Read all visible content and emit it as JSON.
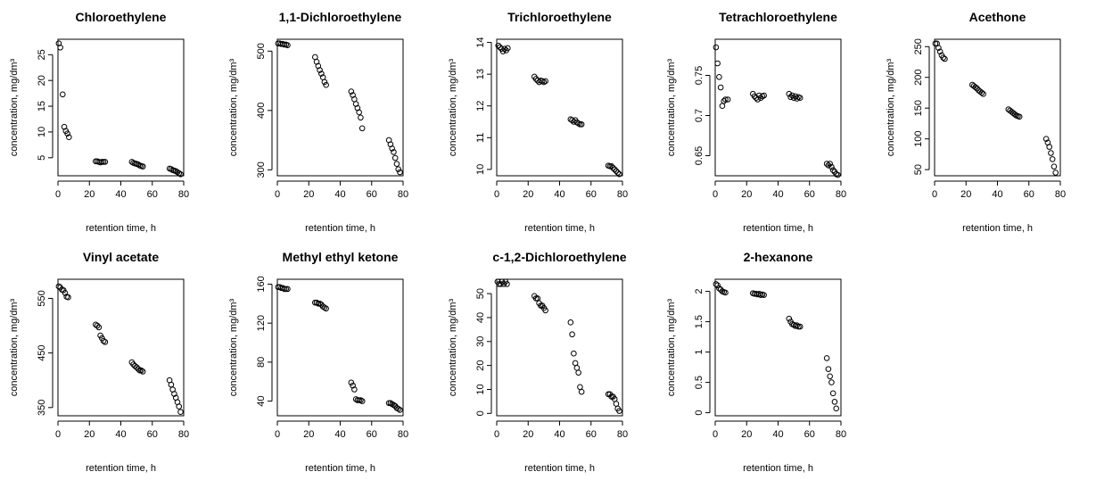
{
  "figure": {
    "xlabel": "retention time, h",
    "ylabel": "concentration, mg/dm³"
  },
  "chart_data": [
    {
      "type": "scatter",
      "title": "Chloroethylene",
      "xlabel": "retention time, h",
      "ylabel": "concentration, mg/dm³",
      "xlim": [
        0,
        80
      ],
      "ylim": [
        1.5,
        28
      ],
      "xticks": [
        0,
        20,
        40,
        60,
        80
      ],
      "yticks": [
        5,
        10,
        15,
        20,
        25
      ],
      "x": [
        0.5,
        1.5,
        3,
        4,
        5,
        6,
        7,
        24,
        25,
        26,
        27,
        28,
        29,
        30,
        47,
        48,
        49,
        50,
        51,
        52,
        53,
        54,
        71,
        72,
        73,
        74,
        75,
        76,
        77,
        78
      ],
      "y": [
        27.2,
        26.4,
        17.3,
        11.0,
        10.2,
        9.7,
        9.0,
        4.3,
        4.3,
        4.2,
        4.1,
        4.2,
        4.2,
        4.2,
        4.2,
        4.0,
        3.9,
        3.8,
        3.7,
        3.5,
        3.4,
        3.3,
        2.9,
        2.8,
        2.6,
        2.5,
        2.4,
        2.2,
        2.0,
        1.8
      ]
    },
    {
      "type": "scatter",
      "title": "1,1-Dichloroethylene",
      "xlabel": "retention time, h",
      "ylabel": "concentration, mg/dm³",
      "xlim": [
        0,
        80
      ],
      "ylim": [
        290,
        520
      ],
      "xticks": [
        0,
        20,
        40,
        60,
        80
      ],
      "yticks": [
        300,
        400,
        500
      ],
      "x": [
        0.5,
        1.5,
        2.5,
        3.5,
        4.5,
        5.5,
        6.5,
        24,
        25,
        26,
        27,
        28,
        29,
        30,
        31,
        47,
        48,
        49,
        50,
        51,
        52,
        53,
        54,
        71,
        72,
        73,
        74,
        75,
        76,
        77,
        78
      ],
      "y": [
        513,
        513,
        512,
        512,
        511,
        511,
        510,
        490,
        482,
        475,
        468,
        462,
        456,
        448,
        443,
        432,
        426,
        419,
        411,
        404,
        397,
        388,
        370,
        350,
        343,
        336,
        330,
        320,
        310,
        301,
        296
      ]
    },
    {
      "type": "scatter",
      "title": "Trichloroethylene",
      "xlabel": "retention time, h",
      "ylabel": "concentration, mg/dm³",
      "xlim": [
        0,
        80
      ],
      "ylim": [
        9.8,
        14.1
      ],
      "xticks": [
        0,
        20,
        40,
        60,
        80
      ],
      "yticks": [
        10,
        11,
        12,
        13,
        14
      ],
      "x": [
        1,
        2,
        3,
        4,
        5,
        6,
        7,
        24,
        25,
        26,
        27,
        28,
        29,
        30,
        31,
        47,
        48,
        49,
        50,
        51,
        52,
        53,
        54,
        71,
        72,
        73,
        74,
        75,
        76,
        77,
        78
      ],
      "y": [
        13.9,
        13.85,
        13.8,
        13.72,
        13.8,
        13.75,
        13.82,
        12.92,
        12.85,
        12.8,
        12.75,
        12.8,
        12.78,
        12.75,
        12.78,
        11.58,
        11.55,
        11.5,
        11.55,
        11.48,
        11.45,
        11.42,
        11.42,
        10.12,
        10.1,
        10.1,
        10.05,
        10.0,
        9.95,
        9.9,
        9.85
      ]
    },
    {
      "type": "scatter",
      "title": "Tetrachloroethylene",
      "xlabel": "retention time, h",
      "ylabel": "concentration, mg/dm³",
      "xlim": [
        0,
        80
      ],
      "ylim": [
        0.625,
        0.795
      ],
      "xticks": [
        0,
        20,
        40,
        60,
        80
      ],
      "yticks": [
        0.65,
        0.7,
        0.75
      ],
      "x": [
        0.5,
        1.5,
        2.5,
        3.5,
        4.5,
        5.5,
        6.5,
        8,
        24,
        25,
        26,
        27,
        28,
        29,
        30,
        31,
        47,
        48,
        49,
        50,
        51,
        52,
        53,
        54,
        71,
        72,
        73,
        74,
        75,
        76,
        77,
        78
      ],
      "y": [
        0.785,
        0.765,
        0.748,
        0.735,
        0.712,
        0.718,
        0.72,
        0.72,
        0.727,
        0.724,
        0.722,
        0.72,
        0.725,
        0.722,
        0.724,
        0.725,
        0.727,
        0.723,
        0.725,
        0.722,
        0.724,
        0.721,
        0.723,
        0.722,
        0.64,
        0.638,
        0.64,
        0.636,
        0.632,
        0.63,
        0.627,
        0.626
      ]
    },
    {
      "type": "scatter",
      "title": "Acethone",
      "xlabel": "retention time, h",
      "ylabel": "concentration, mg/dm³",
      "xlim": [
        0,
        80
      ],
      "ylim": [
        40,
        262
      ],
      "xticks": [
        0,
        20,
        40,
        60,
        80
      ],
      "yticks": [
        50,
        100,
        150,
        200,
        250
      ],
      "x": [
        0.5,
        1.5,
        2.5,
        3.5,
        4.5,
        5.5,
        6.5,
        24,
        25,
        26,
        27,
        28,
        29,
        30,
        31,
        47,
        48,
        49,
        50,
        51,
        52,
        53,
        54,
        71,
        72,
        73,
        74,
        75,
        76,
        77
      ],
      "y": [
        255,
        255,
        248,
        242,
        236,
        232,
        230,
        188,
        186,
        184,
        182,
        179,
        177,
        175,
        173,
        148,
        146,
        144,
        142,
        140,
        138,
        137,
        136,
        100,
        94,
        87,
        77,
        67,
        55,
        45
      ]
    },
    {
      "type": "scatter",
      "title": "Vinyl acetate",
      "xlabel": "retention time, h",
      "ylabel": "concentration, mg/dm³",
      "xlim": [
        0,
        80
      ],
      "ylim": [
        335,
        585
      ],
      "xticks": [
        0,
        20,
        40,
        60,
        80
      ],
      "yticks": [
        350,
        450,
        550
      ],
      "x": [
        0.5,
        1.5,
        2.5,
        3.5,
        4.5,
        5.5,
        6.5,
        24,
        25,
        26,
        27,
        28,
        29,
        30,
        47,
        48,
        49,
        50,
        51,
        52,
        53,
        54,
        71,
        72,
        73,
        74,
        75,
        76,
        77,
        78
      ],
      "y": [
        572,
        570,
        566,
        565,
        560,
        553,
        552,
        502,
        500,
        497,
        482,
        477,
        472,
        470,
        433,
        429,
        426,
        424,
        421,
        418,
        418,
        416,
        400,
        392,
        383,
        375,
        368,
        360,
        352,
        342
      ]
    },
    {
      "type": "scatter",
      "title": "Methyl ethyl ketone",
      "xlabel": "retention time, h",
      "ylabel": "concentration, mg/dm³",
      "xlim": [
        0,
        80
      ],
      "ylim": [
        25,
        165
      ],
      "xticks": [
        0,
        20,
        40,
        60,
        80
      ],
      "yticks": [
        40,
        80,
        120,
        160
      ],
      "x": [
        0.5,
        1.5,
        2.5,
        3.5,
        4.5,
        5.5,
        6.5,
        24,
        25,
        26,
        27,
        28,
        29,
        30,
        31,
        47,
        48,
        49,
        50,
        51,
        52,
        53,
        54,
        71,
        72,
        73,
        74,
        75,
        76,
        77,
        78
      ],
      "y": [
        157,
        157,
        156,
        156,
        155,
        155,
        155,
        141,
        141,
        140,
        140,
        139,
        137,
        136,
        135,
        59,
        56,
        52,
        42,
        41,
        41,
        41,
        40,
        38,
        38,
        37,
        36,
        35,
        33,
        32,
        31
      ]
    },
    {
      "type": "scatter",
      "title": "c-1,2-Dichloroethylene",
      "xlabel": "retention time, h",
      "ylabel": "concentration, mg/dm³",
      "xlim": [
        0,
        80
      ],
      "ylim": [
        -1,
        56
      ],
      "xticks": [
        0,
        20,
        40,
        60,
        80
      ],
      "yticks": [
        0,
        10,
        20,
        30,
        40,
        50
      ],
      "x": [
        0.5,
        1.5,
        2.5,
        3.5,
        4.5,
        5.5,
        6.5,
        24,
        25,
        26,
        27,
        28,
        29,
        30,
        31,
        47,
        48,
        49,
        50,
        51,
        52,
        53,
        54,
        71,
        72,
        73,
        74,
        75,
        76,
        77,
        78
      ],
      "y": [
        55,
        54,
        54,
        55,
        54,
        55,
        54,
        49,
        48,
        48,
        46,
        45,
        45,
        44,
        43,
        38,
        33,
        25,
        21,
        19,
        17,
        11,
        9,
        8,
        8,
        7,
        7,
        6,
        4,
        2,
        1
      ]
    },
    {
      "type": "scatter",
      "title": "2-hexanone",
      "xlabel": "retention time, h",
      "ylabel": "concentration, mg/dm³",
      "xlim": [
        0,
        80
      ],
      "ylim": [
        -0.05,
        2.2
      ],
      "xticks": [
        0,
        20,
        40,
        60,
        80
      ],
      "yticks": [
        0,
        0.5,
        1,
        1.5,
        2
      ],
      "x": [
        0.5,
        1.5,
        2.5,
        3.5,
        4.5,
        5.5,
        6.5,
        24,
        25,
        26,
        27,
        28,
        29,
        30,
        31,
        47,
        48,
        49,
        50,
        51,
        52,
        53,
        54,
        71,
        72,
        73,
        74,
        75,
        76,
        77
      ],
      "y": [
        2.12,
        2.1,
        2.05,
        2.03,
        2.0,
        1.99,
        1.98,
        1.97,
        1.96,
        1.96,
        1.95,
        1.96,
        1.94,
        1.95,
        1.94,
        1.55,
        1.5,
        1.46,
        1.45,
        1.43,
        1.44,
        1.42,
        1.42,
        0.9,
        0.72,
        0.6,
        0.5,
        0.32,
        0.18,
        0.07
      ]
    }
  ]
}
